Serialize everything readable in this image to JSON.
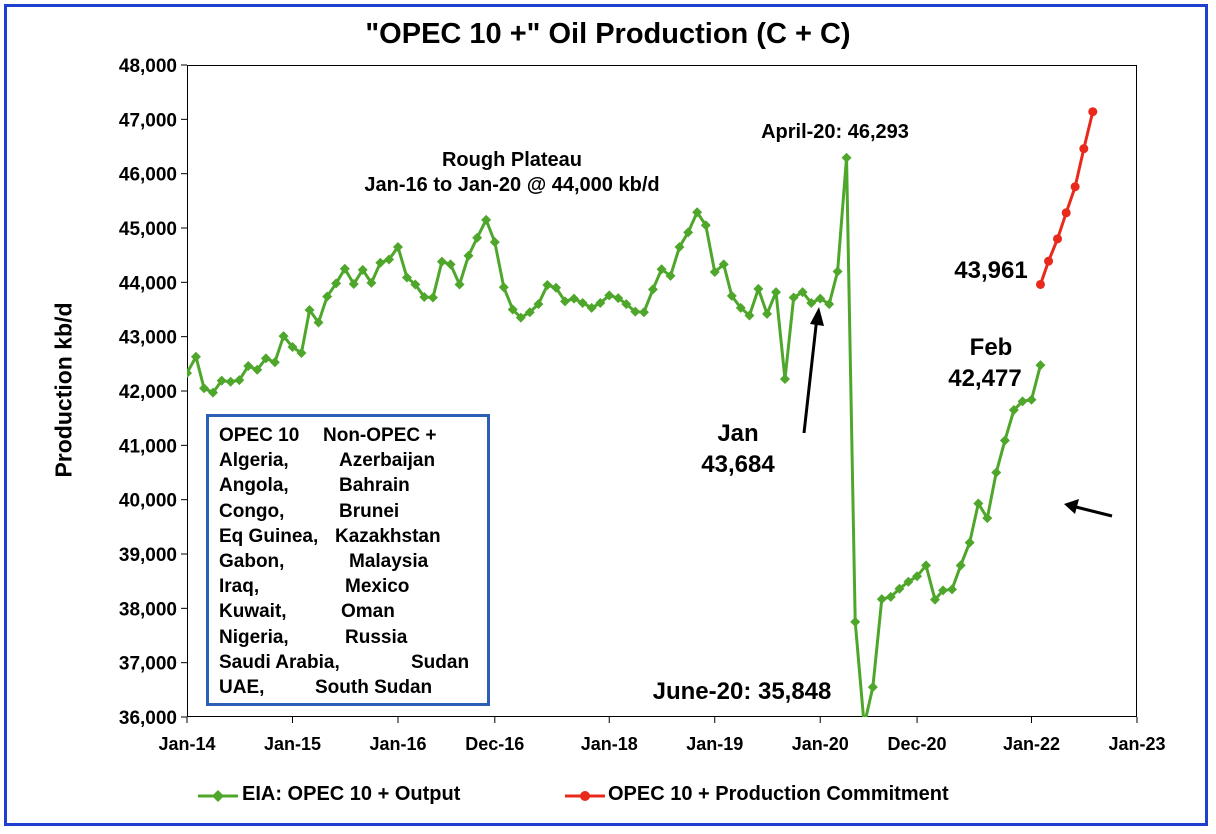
{
  "chart_data": {
    "type": "line",
    "title": "\"OPEC 10 +\" Oil Production (C + C)",
    "ylabel": "Production kb/d",
    "ylim": [
      36000,
      48000
    ],
    "yticks": [
      "36,000",
      "37,000",
      "38,000",
      "39,000",
      "40,000",
      "41,000",
      "42,000",
      "43,000",
      "44,000",
      "45,000",
      "46,000",
      "47,000",
      "48,000"
    ],
    "xrange": [
      "2014-01-01",
      "2023-01-01"
    ],
    "xticks": [
      {
        "label": "Jan-14",
        "date": "2014-01-01"
      },
      {
        "label": "Jan-15",
        "date": "2015-01-01"
      },
      {
        "label": "Jan-16",
        "date": "2016-01-01"
      },
      {
        "label": "Dec-16",
        "date": "2016-12-01"
      },
      {
        "label": "Jan-18",
        "date": "2018-01-01"
      },
      {
        "label": "Jan-19",
        "date": "2019-01-01"
      },
      {
        "label": "Jan-20",
        "date": "2020-01-01"
      },
      {
        "label": "Dec-20",
        "date": "2020-12-01"
      },
      {
        "label": "Jan-22",
        "date": "2022-01-01"
      },
      {
        "label": "Jan-23",
        "date": "2023-01-01"
      }
    ],
    "series": [
      {
        "name": "EIA: OPEC 10 + Output",
        "color": "#4ea72a",
        "marker": "diamond",
        "start": "2014-01",
        "values": [
          42330,
          42630,
          42050,
          41970,
          42190,
          42170,
          42200,
          42460,
          42390,
          42600,
          42530,
          43010,
          42810,
          42700,
          43490,
          43260,
          43740,
          43980,
          44250,
          43970,
          44230,
          43990,
          44360,
          44420,
          44650,
          44090,
          43960,
          43730,
          43720,
          44380,
          44330,
          43960,
          44490,
          44820,
          45150,
          44740,
          43910,
          43500,
          43350,
          43450,
          43600,
          43950,
          43900,
          43650,
          43700,
          43620,
          43530,
          43620,
          43760,
          43710,
          43600,
          43460,
          43450,
          43870,
          44240,
          44120,
          44650,
          44920,
          45290,
          45050,
          44190,
          44330,
          43750,
          43530,
          43390,
          43880,
          43420,
          43820,
          42220,
          43720,
          43820,
          43620,
          43700,
          43600,
          44200,
          46293,
          37750,
          35848,
          36550,
          38170,
          38210,
          38360,
          38490,
          38590,
          38790,
          38160,
          38330,
          38350,
          38790,
          39210,
          39930,
          39660,
          40500,
          41090,
          41650,
          41810,
          41840,
          42477
        ]
      },
      {
        "name": "OPEC 10 + Production Commitment",
        "color": "#e8291c",
        "marker": "circle",
        "start": "2022-02",
        "values": [
          43961,
          44390,
          44800,
          45280,
          45760,
          46460,
          47140
        ]
      }
    ],
    "annotations": {
      "plateau_line1": "Rough Plateau",
      "plateau_line2": "Jan-16 to Jan-20 @ 44,000 kb/d",
      "april20": "April-20: 46,293",
      "jan_label": "Jan",
      "jan_value": "43,684",
      "june20": "June-20: 35,848",
      "feb_label": "Feb",
      "feb_value": "42,477",
      "commit_start": "43,961"
    },
    "legend_position": "bottom",
    "grid": false
  },
  "members_box": {
    "header_left": "OPEC 10",
    "header_right": "Non-OPEC +",
    "rows": [
      {
        "left": "Algeria,",
        "right": "Azerbaijan"
      },
      {
        "left": "Angola,",
        "right": "Bahrain"
      },
      {
        "left": "Congo,",
        "right": "Brunei"
      },
      {
        "left": "Eq Guinea,",
        "right": "Kazakhstan"
      },
      {
        "left": "Gabon,",
        "right": "Malaysia"
      },
      {
        "left": "Iraq,",
        "right": "Mexico"
      },
      {
        "left": "Kuwait,",
        "right": "Oman"
      },
      {
        "left": "Nigeria,",
        "right": "Russia"
      },
      {
        "left": "Saudi Arabia,",
        "right": "Sudan"
      },
      {
        "left": "UAE,",
        "right": "South Sudan"
      }
    ]
  },
  "legend": {
    "item1": "EIA: OPEC 10 + Output",
    "item2": "OPEC 10 + Production Commitment"
  }
}
